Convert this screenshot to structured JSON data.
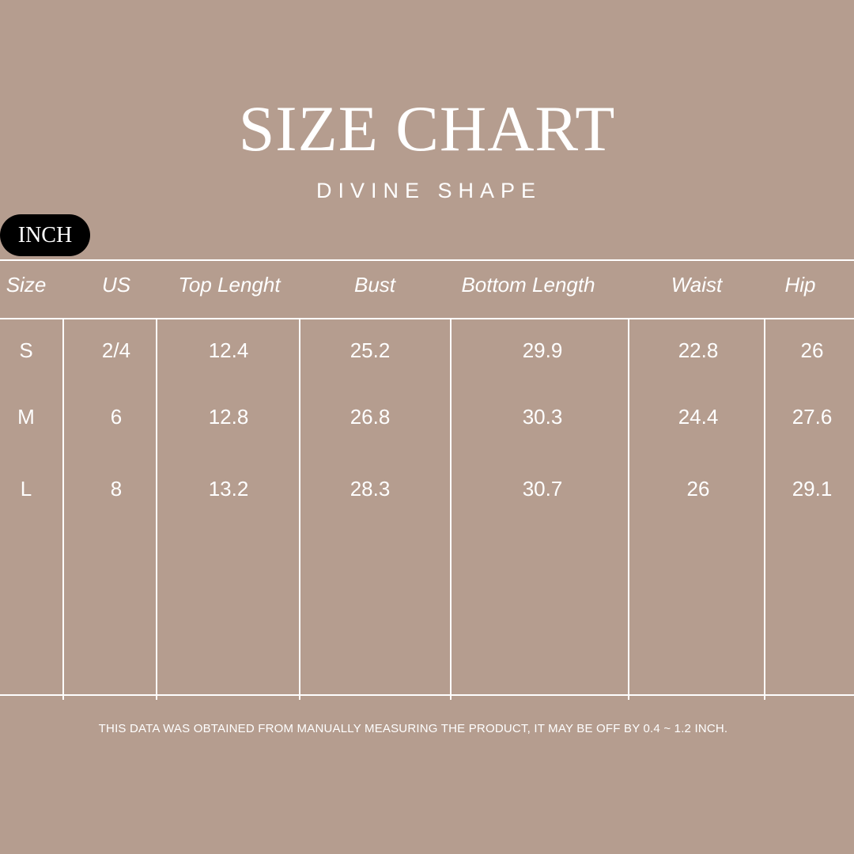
{
  "title": "SIZE CHART",
  "brand": "DIVINE SHAPE",
  "unit": "INCH",
  "table": {
    "headers": [
      "Size",
      "US",
      "Top Lenght",
      "Bust",
      "Bottom Length",
      "Waist",
      "Hip"
    ],
    "rows": [
      [
        "S",
        "2/4",
        "12.4",
        "25.2",
        "29.9",
        "22.8",
        "26"
      ],
      [
        "M",
        "6",
        "12.8",
        "26.8",
        "30.3",
        "24.4",
        "27.6"
      ],
      [
        "L",
        "8",
        "13.2",
        "28.3",
        "30.7",
        "26",
        "29.1"
      ]
    ]
  },
  "note": "THIS DATA WAS OBTAINED FROM MANUALLY MEASURING THE PRODUCT, IT MAY BE OFF BY 0.4 ~ 1.2 INCH.",
  "colors": {
    "background": "#b59d8f",
    "text": "#ffffff",
    "badge": "#000000"
  }
}
